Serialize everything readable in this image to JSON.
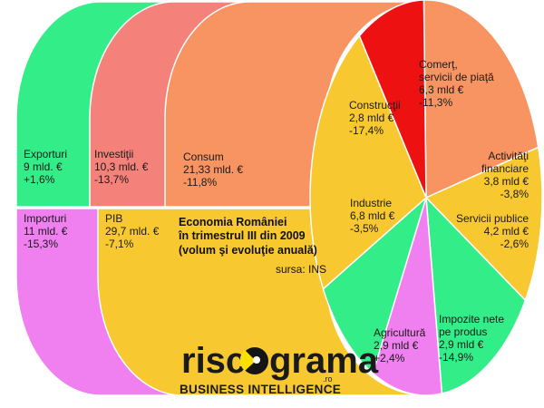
{
  "chart_data": {
    "type": "pie",
    "title_lines": [
      "Economia României",
      "în trimestrul III din 2009",
      "(volum şi evoluţie anuală)"
    ],
    "source": "sursa: INS",
    "unit": "mld. €",
    "components": [
      {
        "id": "exporturi",
        "lines": [
          "Exporturi",
          "9 mld. €",
          "+1,6%"
        ],
        "value": 9,
        "change": 1.6,
        "color": "#33ee88"
      },
      {
        "id": "investitii",
        "lines": [
          "Investiţii",
          "10,3 mld. €",
          "-13,7%"
        ],
        "value": 10.3,
        "change": -13.7,
        "color": "#f5827a"
      },
      {
        "id": "consum",
        "lines": [
          "Consum",
          "21,33 mld. €",
          "-11,8%"
        ],
        "value": 21.33,
        "change": -11.8,
        "color": "#f89462"
      },
      {
        "id": "importuri",
        "lines": [
          "Importuri",
          "11 mld. €",
          "-15,3%"
        ],
        "value": 11,
        "change": -15.3,
        "color": "#f07ff0"
      },
      {
        "id": "pib",
        "lines": [
          "PIB",
          "29,7 mld. €",
          "-7,1%"
        ],
        "value": 29.7,
        "change": -7.1,
        "color": "#f8c830"
      }
    ],
    "slices": [
      {
        "id": "comert",
        "lines": [
          "Comerţ,",
          "servicii de piaţă",
          "6,3 mld €",
          "-11,3%"
        ],
        "value": 6.3,
        "change": -11.3,
        "color": "#f89462"
      },
      {
        "id": "activitati-financiare",
        "lines": [
          "Activităţi",
          "financiare",
          "3,8 mld €",
          "-3,8%"
        ],
        "value": 3.8,
        "change": -3.8,
        "color": "#f8c830"
      },
      {
        "id": "servicii-publice",
        "lines": [
          "Servicii publice",
          "4,2 mld €",
          "-2,6%"
        ],
        "value": 4.2,
        "change": -2.6,
        "color": "#33ee88"
      },
      {
        "id": "impozite-nete",
        "lines": [
          "Impozite nete",
          "pe produs",
          "2,9 mld €",
          "-14,9%"
        ],
        "value": 2.9,
        "change": -14.9,
        "color": "#f07ff0"
      },
      {
        "id": "agricultura",
        "lines": [
          "Agricultură",
          "2,9 mld €",
          "+2,4%"
        ],
        "value": 2.9,
        "change": 2.4,
        "color": "#33ee88"
      },
      {
        "id": "industrie",
        "lines": [
          "Industrie",
          "6,8 mld €",
          "-3,5%"
        ],
        "value": 6.8,
        "change": -3.5,
        "color": "#f8c830"
      },
      {
        "id": "constructii",
        "lines": [
          "Construcţii",
          "2,8 mld €",
          "-17,4%"
        ],
        "value": 2.8,
        "change": -17.4,
        "color": "#ee1111"
      }
    ]
  },
  "logo": {
    "name_part1": "risc",
    "name_part2": "grama",
    "domain": ".ro",
    "tagline": "BUSINESS INTELLIGENCE"
  }
}
